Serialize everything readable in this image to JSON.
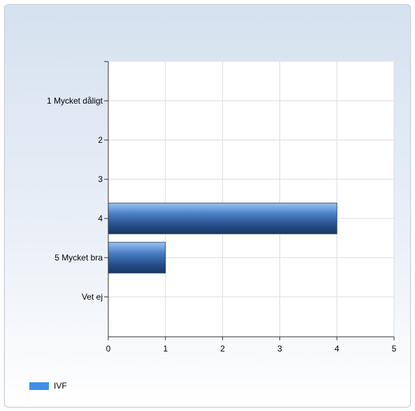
{
  "chart_data": {
    "type": "bar",
    "orientation": "horizontal",
    "categories": [
      "1 Mycket dåligt",
      "2",
      "3",
      "4",
      "5 Mycket bra",
      "Vet ej"
    ],
    "series": [
      {
        "name": "IVF",
        "values": [
          0,
          0,
          0,
          4,
          1,
          0
        ],
        "color": "#3f8fe8"
      }
    ],
    "xlim": [
      0,
      5
    ],
    "xticks": [
      0,
      1,
      2,
      3,
      4,
      5
    ],
    "grid": true,
    "legend_position": "bottom-left"
  }
}
